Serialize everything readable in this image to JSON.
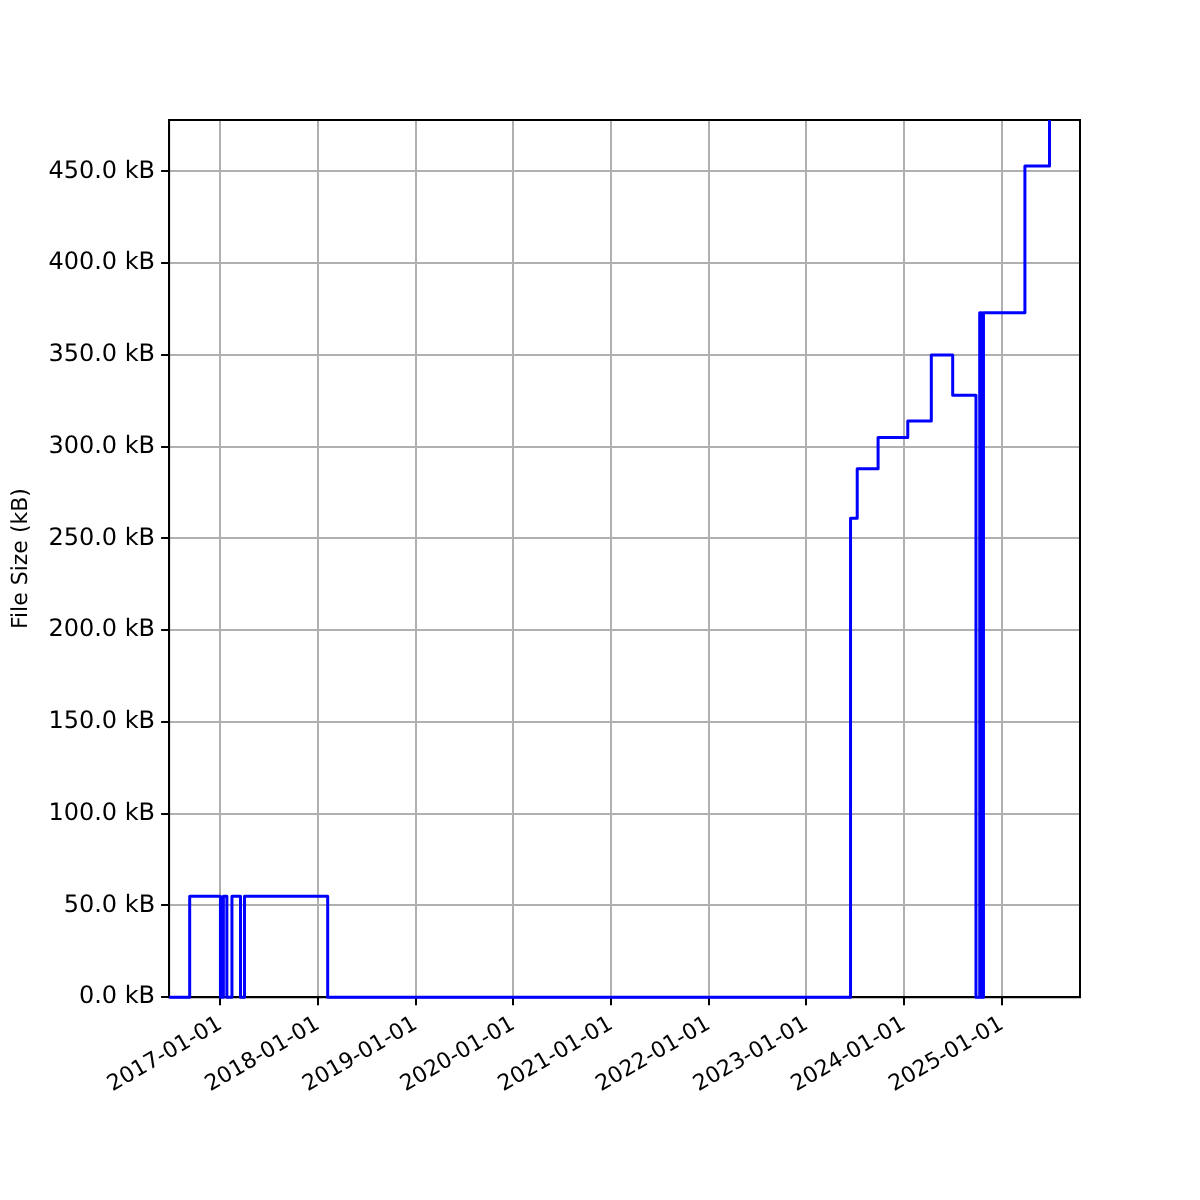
{
  "chart_data": {
    "type": "step",
    "ylabel": "File Size (kB)",
    "x": [
      "2016-06-23",
      "2016-09-08",
      "2017-01-01",
      "2017-01-12",
      "2017-01-25",
      "2017-02-13",
      "2017-03-17",
      "2017-04-01",
      "2018-02-06",
      "2023-06-15",
      "2023-07-10",
      "2023-09-26",
      "2024-01-15",
      "2024-04-12",
      "2024-07-01",
      "2024-09-26",
      "2024-10-10",
      "2024-10-18",
      "2024-10-24",
      "2025-03-28",
      "2025-06-28"
    ],
    "series": [
      {
        "color": "#0000ff",
        "values": [
          0,
          55,
          0,
          55,
          0,
          55,
          0,
          55,
          0,
          261,
          288,
          305,
          314,
          350,
          328,
          0,
          373,
          0,
          373,
          453,
          478
        ]
      }
    ],
    "xlim": [
      "2016-06-23",
      "2025-10-20"
    ],
    "xticks": [
      "2017-01-01",
      "2018-01-01",
      "2019-01-01",
      "2020-01-01",
      "2021-01-01",
      "2022-01-01",
      "2023-01-01",
      "2024-01-01",
      "2025-01-01"
    ],
    "ylim": [
      0,
      478
    ],
    "yticks": [
      {
        "value": 0,
        "label": "0.0 kB"
      },
      {
        "value": 50,
        "label": "50.0 kB"
      },
      {
        "value": 100,
        "label": "100.0 kB"
      },
      {
        "value": 150,
        "label": "150.0 kB"
      },
      {
        "value": 200,
        "label": "200.0 kB"
      },
      {
        "value": 250,
        "label": "250.0 kB"
      },
      {
        "value": 300,
        "label": "300.0 kB"
      },
      {
        "value": 350,
        "label": "350.0 kB"
      },
      {
        "value": 400,
        "label": "400.0 kB"
      },
      {
        "value": 450,
        "label": "450.0 kB"
      }
    ],
    "grid": true,
    "line_style": "solid",
    "marker": "none"
  }
}
